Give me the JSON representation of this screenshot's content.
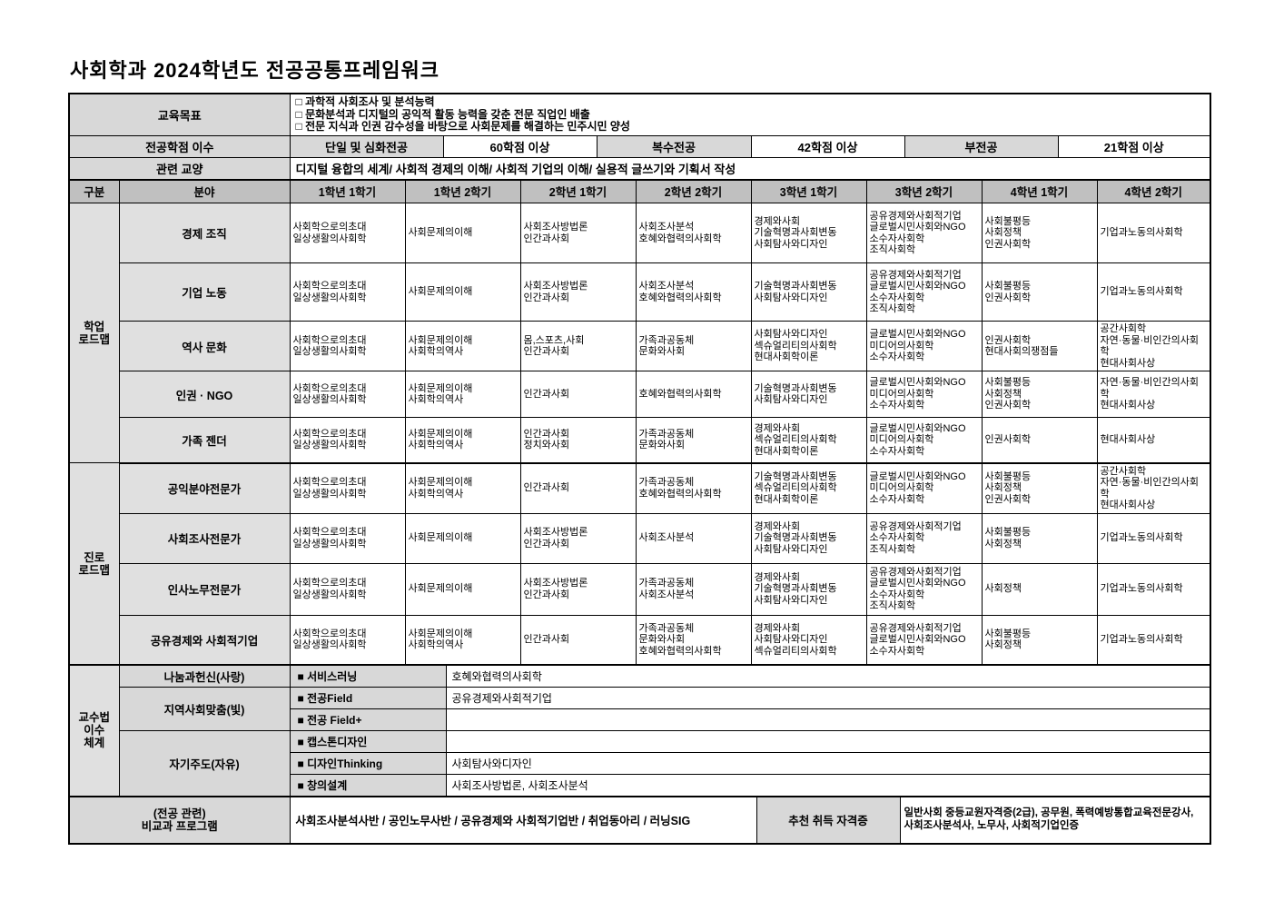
{
  "page_title": "사회학과 2024학년도 전공공통프레임워크",
  "top": {
    "goal_label": "교육목표",
    "goals": "□ 과학적 사회조사 및 분석능력\n□ 문화분석과 디지털의 공익적 활동 능력을 갖춘 전문 직업인 배출\n□ 전문 지식과 인권 감수성을 바탕으로 사회문제를 해결하는 민주시민 양성",
    "credits_label": "전공학점 이수",
    "credits": [
      {
        "name": "단일 및 심화전공",
        "value": "60학점 이상"
      },
      {
        "name": "복수전공",
        "value": "42학점 이상"
      },
      {
        "name": "부전공",
        "value": "21학점 이상"
      }
    ],
    "liberal_label": "관련 교양",
    "liberal": "디지털 융합의 세계/ 사회적 경제의 이해/ 사회적 기업의 이해/ 실용적 글쓰기와 기획서 작성"
  },
  "header": {
    "gubun": "구분",
    "bunya": "분야",
    "semesters": [
      "1학년 1학기",
      "1학년 2학기",
      "2학년 1학기",
      "2학년 2학기",
      "3학년 1학기",
      "3학년 2학기",
      "4학년 1학기",
      "4학년 2학기"
    ]
  },
  "roadmap": {
    "groups": [
      {
        "label": "학업\n로드맵",
        "rows": [
          {
            "field": "경제 조직",
            "cells": [
              "사회학으로의초대\n일상생활의사회학",
              "사회문제의이해",
              "사회조사방법론\n인간과사회",
              "사회조사분석\n호혜와협력의사회학",
              "경제와사회\n기술혁명과사회변동\n사회탐사와디자인",
              "공유경제와사회적기업\n글로벌시민사회와NGO\n소수자사회학\n조직사회학",
              "사회불평등\n사회정책\n인권사회학",
              "기업과노동의사회학"
            ]
          },
          {
            "field": "기업 노동",
            "cells": [
              "사회학으로의초대\n일상생활의사회학",
              "사회문제의이해",
              "사회조사방법론\n인간과사회",
              "사회조사분석\n호혜와협력의사회학",
              "기술혁명과사회변동\n사회탐사와디자인",
              "공유경제와사회적기업\n글로벌시민사회와NGO\n소수자사회학\n조직사회학",
              "사회불평등\n인권사회학",
              "기업과노동의사회학"
            ]
          },
          {
            "field": "역사 문화",
            "cells": [
              "사회학으로의초대\n일상생활의사회학",
              "사회문제의이해\n사회학의역사",
              "몸,스포츠,사회\n인간과사회",
              "가족과공동체\n문화와사회",
              "사회탐사와디자인\n섹슈얼리티의사회학\n현대사회학이론",
              "글로벌시민사회와NGO\n미디어의사회학\n소수자사회학",
              "인권사회학\n현대사회의쟁점들",
              "공간사회학\n자연·동물·비인간의사회학\n현대사회사상"
            ]
          },
          {
            "field": "인권 · NGO",
            "cells": [
              "사회학으로의초대\n일상생활의사회학",
              "사회문제의이해\n사회학의역사",
              "인간과사회",
              "호혜와협력의사회학",
              "기술혁명과사회변동\n사회탐사와디자인",
              "글로벌시민사회와NGO\n미디어의사회학\n소수자사회학",
              "사회불평등\n사회정책\n인권사회학",
              "자연·동물·비인간의사회학\n현대사회사상"
            ]
          },
          {
            "field": "가족 젠더",
            "cells": [
              "사회학으로의초대\n일상생활의사회학",
              "사회문제의이해\n사회학의역사",
              "인간과사회\n정치와사회",
              "가족과공동체\n문화와사회",
              "경제와사회\n섹슈얼리티의사회학\n현대사회학이론",
              "글로벌시민사회와NGO\n미디어의사회학\n소수자사회학",
              "인권사회학",
              "현대사회사상"
            ]
          }
        ]
      },
      {
        "label": "진로\n로드맵",
        "rows": [
          {
            "field": "공익분야전문가",
            "cells": [
              "사회학으로의초대\n일상생활의사회학",
              "사회문제의이해\n사회학의역사",
              "인간과사회",
              "가족과공동체\n호혜와협력의사회학",
              "기술혁명과사회변동\n섹슈얼리티의사회학\n현대사회학이론",
              "글로벌시민사회와NGO\n미디어의사회학\n소수자사회학",
              "사회불평등\n사회정책\n인권사회학",
              "공간사회학\n자연·동물·비인간의사회학\n현대사회사상"
            ]
          },
          {
            "field": "사회조사전문가",
            "cells": [
              "사회학으로의초대\n일상생활의사회학",
              "사회문제의이해",
              "사회조사방법론\n인간과사회",
              "사회조사분석",
              "경제와사회\n기술혁명과사회변동\n사회탐사와디자인",
              "공유경제와사회적기업\n소수자사회학\n조직사회학",
              "사회불평등\n사회정책",
              "기업과노동의사회학"
            ]
          },
          {
            "field": "인사노무전문가",
            "cells": [
              "사회학으로의초대\n일상생활의사회학",
              "사회문제의이해",
              "사회조사방법론\n인간과사회",
              "가족과공동체\n사회조사분석",
              "경제와사회\n기술혁명과사회변동\n사회탐사와디자인",
              "공유경제와사회적기업\n글로벌시민사회와NGO\n소수자사회학\n조직사회학",
              "사회정책",
              "기업과노동의사회학"
            ]
          },
          {
            "field": "공유경제와 사회적기업",
            "cells": [
              "사회학으로의초대\n일상생활의사회학",
              "사회문제의이해\n사회학의역사",
              "인간과사회",
              "가족과공동체\n문화와사회\n호혜와협력의사회학",
              "경제와사회\n사회탐사와디자인\n섹슈얼리티의사회학",
              "공유경제와사회적기업\n글로벌시민사회와NGO\n소수자사회학",
              "사회불평등\n사회정책",
              "기업과노동의사회학"
            ]
          }
        ]
      }
    ]
  },
  "pedagogy": {
    "label": "교수법\n이수\n체계",
    "rows": [
      {
        "category": "나눔과헌신(사랑)",
        "method": "■ 서비스러닝",
        "value": "호혜와협력의사회학"
      },
      {
        "category": "지역사회맞춤(빛)",
        "method": "■ 전공Field",
        "value": "공유경제와사회적기업"
      },
      {
        "method": "■ 전공 Field+",
        "value": ""
      },
      {
        "category": "자기주도(자유)",
        "method": "■ 캡스톤디자인",
        "value": ""
      },
      {
        "method": "■ 디자인Thinking",
        "value": "사회탐사와디자인"
      },
      {
        "method": "■ 창의설계",
        "value": "사회조사방법론, 사회조사분석"
      }
    ]
  },
  "bottom": {
    "label": "(전공 관련)\n비교과 프로그램",
    "programs": "사회조사분석사반 / 공인노무사반 / 공유경제와 사회적기업반 / 취업동아리 / 러닝SIG",
    "cert_label": "추천 취득 자격증",
    "certs": "일반사회 중등교원자격증(2급), 공무원, 폭력예방통합교육전문강사, 사회조사분석사, 노무사, 사회적기업인증"
  }
}
